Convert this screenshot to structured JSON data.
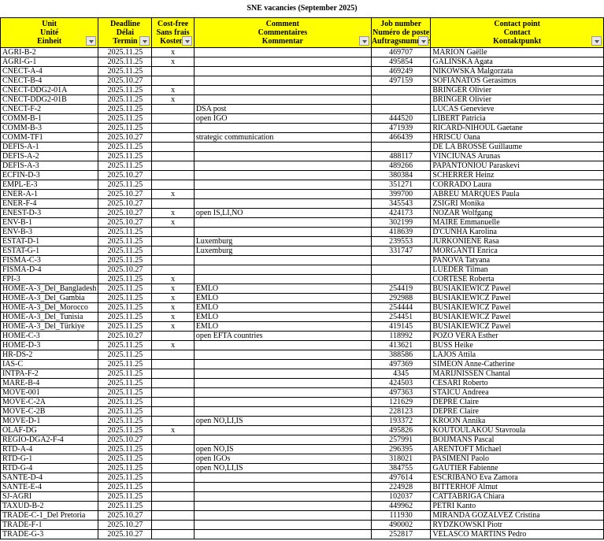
{
  "title": "SNE vacancies (September 2025)",
  "headers": [
    [
      "Unit",
      "Unité",
      "Einheit"
    ],
    [
      "Deadline",
      "Délai",
      "Termin"
    ],
    [
      "Cost-free",
      "Sans frais",
      "Kostenl"
    ],
    [
      "Comment",
      "Commentaires",
      "Kommentar"
    ],
    [
      "Job number",
      "Numéro de poste",
      "Auftragsnummer"
    ],
    [
      "Contact point",
      "Contact",
      "Kontaktpunkt"
    ]
  ],
  "header_fill": "#ffff00",
  "rows": [
    [
      "AGRI-B-2",
      "2025.11.25",
      "x",
      "",
      "469707",
      "MARION Gaëlle"
    ],
    [
      "AGRI-G-1",
      "2025.11.25",
      "x",
      "",
      "495854",
      "GALINSKA Agata"
    ],
    [
      "CNECT-A-4",
      "2025.11.25",
      "",
      "",
      "469249",
      "NIKOWSKA Malgorzata"
    ],
    [
      "CNECT-B-4",
      "2025.10.27",
      "",
      "",
      "497159",
      "SOFIANATOS Gerasimos"
    ],
    [
      "CNECT-DDG2-01A",
      "2025.11.25",
      "x",
      "",
      "",
      "BRINGER Olivier"
    ],
    [
      "CNECT-DDG2-01B",
      "2025.11.25",
      "x",
      "",
      "",
      "BRINGER Olivier"
    ],
    [
      "CNECT-F-2",
      "2025.11.25",
      "",
      "DSA post",
      "",
      "LUCAS Genevieve"
    ],
    [
      "COMM-B-1",
      "2025.11.25",
      "",
      "open IGO",
      "444520",
      "LIBERT Patricia"
    ],
    [
      "COMM-B-3",
      "2025.11.25",
      "",
      "",
      "471939",
      "RICARD-NIHOUL Gaetane"
    ],
    [
      "COMM-TF1",
      "2025.10.27",
      "",
      "strategic communication",
      "466439",
      "HRISCU Oana"
    ],
    [
      "DEFIS-A-1",
      "2025.11.25",
      "",
      "",
      "",
      "DE LA BROSSE Guillaume"
    ],
    [
      "DEFIS-A-2",
      "2025.11.25",
      "",
      "",
      "488117",
      "VINCIUNAS Arunas"
    ],
    [
      "DEFIS-A-3",
      "2025.11.25",
      "",
      "",
      "489266",
      "PAPANTONIOU Paraskevi"
    ],
    [
      "ECFIN-D-3",
      "2025.10.27",
      "",
      "",
      "380384",
      "SCHERRER Heinz"
    ],
    [
      "EMPL-E-3",
      "2025.11.25",
      "",
      "",
      "351271",
      "CORRADO Laura"
    ],
    [
      "ENER-A-1",
      "2025.10.27",
      "x",
      "",
      "399700",
      "ABREU MARQUES Paula"
    ],
    [
      "ENER-F-4",
      "2025.10.27",
      "",
      "",
      "345543",
      "ZSIGRI Monika"
    ],
    [
      "ENEST-D-3",
      "2025.10.27",
      "x",
      "open IS,LI,NO",
      "424173",
      "NOZAR Wolfgang"
    ],
    [
      "ENV-B-1",
      "2025.10.27",
      "x",
      "",
      "302199",
      "MAIRE Emmanuelle"
    ],
    [
      "ENV-B-3",
      "2025.11.25",
      "",
      "",
      "418639",
      "D'CUNHA Karolina"
    ],
    [
      "ESTAT-D-1",
      "2025.11.25",
      "",
      "Luxemburg",
      "239553",
      "JURKONIENE Rasa"
    ],
    [
      "ESTAT-G-1",
      "2025.11.25",
      "",
      "Luxemburg",
      "331747",
      "MORGANTI Enrica"
    ],
    [
      "FISMA-C-3",
      "2025.11.25",
      "",
      "",
      "",
      "PANOVA Tatyana"
    ],
    [
      "FISMA-D-4",
      "2025.10.27",
      "",
      "",
      "",
      "LUEDER Tilman"
    ],
    [
      "FPI-3",
      "2025.11.25",
      "x",
      "",
      "",
      "CORTESE Roberta"
    ],
    [
      "HOME-A-3_Del_Bangladesh",
      "2025.11.25",
      "x",
      "EMLO",
      "254419",
      "BUSIAKIEWICZ Pawel"
    ],
    [
      "HOME-A-3_Del_Gambia",
      "2025.11.25",
      "x",
      "EMLO",
      "292988",
      "BUSIAKIEWICZ Pawel"
    ],
    [
      "HOME-A-3_Del_Morocco",
      "2025.11.25",
      "x",
      "EMLO",
      "254444",
      "BUSIAKIEWICZ Pawel"
    ],
    [
      "HOME-A-3_Del_Tunisia",
      "2025.11.25",
      "x",
      "EMLO",
      "254451",
      "BUSIAKIEWICZ Pawel"
    ],
    [
      "HOME-A-3_Del_Türkiye",
      "2025.11.25",
      "x",
      "EMLO",
      "419145",
      "BUSIAKIEWICZ Pawel"
    ],
    [
      "HOME-C-3",
      "2025.10.27",
      "",
      "open EFTA countries",
      "118992",
      "POZO VERA Esther"
    ],
    [
      "HOME-D-3",
      "2025.11.25",
      "x",
      "",
      "413621",
      "BUSS Heike"
    ],
    [
      "HR-DS-2",
      "2025.11.25",
      "",
      "",
      "388586",
      "LAJOS Attila"
    ],
    [
      "IAS-C",
      "2025.11.25",
      "",
      "",
      "497369",
      "SIMEON Anne-Catherine"
    ],
    [
      "INTPA-F-2",
      "2025.11.25",
      "",
      "",
      "4345",
      "MARIJNISSEN Chantal"
    ],
    [
      "MARE-B-4",
      "2025.11.25",
      "",
      "",
      "424503",
      "CESARI Roberto"
    ],
    [
      "MOVE-001",
      "2025.11.25",
      "",
      "",
      "497363",
      "STAICU Andreea"
    ],
    [
      "MOVE-C-2A",
      "2025.11.25",
      "",
      "",
      "121629",
      "DEPRE Claire"
    ],
    [
      "MOVE-C-2B",
      "2025.11.25",
      "",
      "",
      "228123",
      "DEPRE Claire"
    ],
    [
      "MOVE-D-1",
      "2025.11.25",
      "",
      "open NO,LI,IS",
      "193372",
      "KROON Annika"
    ],
    [
      "OLAF-DG",
      "2025.11.25",
      "x",
      "",
      "495826",
      "KOUTOULAKOU Stavroula"
    ],
    [
      "REGIO-DGA2-F-4",
      "2025.10.27",
      "",
      "",
      "257991",
      "BOIJMANS Pascal"
    ],
    [
      "RTD-A-4",
      "2025.11.25",
      "",
      "open NO,IS",
      "296395",
      "ARENTOFT Michael"
    ],
    [
      "RTD-G-1",
      "2025.11.25",
      "",
      "open IGOs",
      "318021",
      "PASIMENI Paolo"
    ],
    [
      "RTD-G-4",
      "2025.11.25",
      "",
      "open NO,LI,IS",
      "384755",
      "GAUTIER Fabienne"
    ],
    [
      "SANTE-D-4",
      "2025.11.25",
      "",
      "",
      "497614",
      "ESCRIBANO Eva Zamora"
    ],
    [
      "SANTE-E-4",
      "2025.11.25",
      "",
      "",
      "224928",
      "BITTERHOF Almut"
    ],
    [
      "SJ-AGRI",
      "2025.11.25",
      "",
      "",
      "102037",
      "CATTABRIGA Chiara"
    ],
    [
      "TAXUD-B-2",
      "2025.11.25",
      "",
      "",
      "449962",
      "PETRI Kanto"
    ],
    [
      "TRADE-C-1_Del Pretoria",
      "2025.10.27",
      "",
      "",
      "111930",
      "MIRANDA GOZALVEZ Cristina"
    ],
    [
      "TRADE-F-1",
      "2025.10.27",
      "",
      "",
      "490002",
      "RYDZKOWSKI Piotr"
    ],
    [
      "TRADE-G-3",
      "2025.10.27",
      "",
      "",
      "252817",
      "VELASCO MARTINS Pedro"
    ]
  ]
}
